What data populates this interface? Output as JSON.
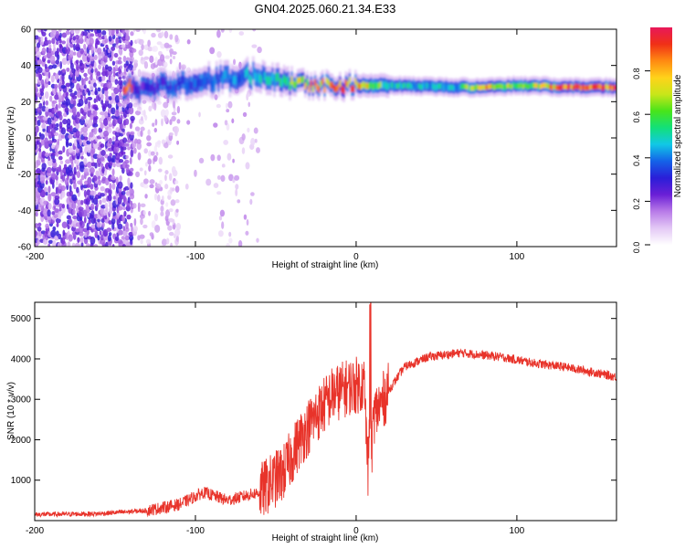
{
  "title": "GN04.2025.060.21.34.E33",
  "chart_data": [
    {
      "type": "heatmap",
      "xlabel": "Height of straight line (km)",
      "ylabel": "Frequency (Hz)",
      "xlim": [
        -200,
        162
      ],
      "ylim": [
        -60,
        60
      ],
      "x_ticks": [
        "-200",
        "-100",
        "0",
        "100"
      ],
      "y_ticks": [
        "60",
        "40",
        "20",
        "0",
        "-20",
        "-40",
        "-60"
      ],
      "colorbar": {
        "label": "Normalized spectral amplitude",
        "ticks": [
          "0.0",
          "0.2",
          "0.4",
          "0.6",
          "0.8"
        ],
        "range": [
          0,
          1
        ],
        "colors": [
          "#ffffff",
          "#e3c8f5",
          "#b87ae8",
          "#6a1fd6",
          "#2a1ed8",
          "#1463e8",
          "#11c8e6",
          "#12e07a",
          "#48e41a",
          "#c8e61a",
          "#ffd21a",
          "#ff8a12",
          "#f03016",
          "#e8185a"
        ]
      },
      "ridge": [
        {
          "x": -140,
          "f": 26,
          "a": 0.25
        },
        {
          "x": -120,
          "f": 29,
          "a": 0.3
        },
        {
          "x": -100,
          "f": 31,
          "a": 0.35
        },
        {
          "x": -80,
          "f": 33,
          "a": 0.4
        },
        {
          "x": -60,
          "f": 35,
          "a": 0.45
        },
        {
          "x": -45,
          "f": 32,
          "a": 0.55
        },
        {
          "x": -30,
          "f": 30,
          "a": 0.75
        },
        {
          "x": -10,
          "f": 29,
          "a": 0.85
        },
        {
          "x": 0,
          "f": 29,
          "a": 0.8
        },
        {
          "x": 20,
          "f": 29,
          "a": 0.5
        },
        {
          "x": 60,
          "f": 28,
          "a": 0.45
        },
        {
          "x": 80,
          "f": 28,
          "a": 0.8
        },
        {
          "x": 100,
          "f": 29,
          "a": 0.55
        },
        {
          "x": 130,
          "f": 28,
          "a": 0.9
        },
        {
          "x": 162,
          "f": 28,
          "a": 0.9
        }
      ]
    },
    {
      "type": "line",
      "xlabel": "Height of straight line (km)",
      "ylabel": "SNR (10 * v/v)",
      "xlim": [
        -200,
        162
      ],
      "ylim": [
        0,
        5400
      ],
      "x_ticks": [
        "-200",
        "-100",
        "0",
        "100"
      ],
      "y_ticks": [
        "5000",
        "4000",
        "3000",
        "2000",
        "1000"
      ],
      "color": "#e8332a",
      "series": [
        {
          "x": -200,
          "y": 150
        },
        {
          "x": -160,
          "y": 170
        },
        {
          "x": -130,
          "y": 250
        },
        {
          "x": -110,
          "y": 400
        },
        {
          "x": -95,
          "y": 700
        },
        {
          "x": -80,
          "y": 500
        },
        {
          "x": -60,
          "y": 700
        },
        {
          "x": -45,
          "y": 1200
        },
        {
          "x": -35,
          "y": 2000
        },
        {
          "x": -25,
          "y": 2600
        },
        {
          "x": -15,
          "y": 3100
        },
        {
          "x": -5,
          "y": 3300
        },
        {
          "x": 5,
          "y": 3400
        },
        {
          "x": 8,
          "y": 600
        },
        {
          "x": 11,
          "y": 2600
        },
        {
          "x": 20,
          "y": 3200
        },
        {
          "x": 30,
          "y": 3800
        },
        {
          "x": 45,
          "y": 4050
        },
        {
          "x": 65,
          "y": 4150
        },
        {
          "x": 90,
          "y": 4050
        },
        {
          "x": 110,
          "y": 3900
        },
        {
          "x": 130,
          "y": 3800
        },
        {
          "x": 150,
          "y": 3650
        },
        {
          "x": 162,
          "y": 3550
        }
      ]
    }
  ]
}
